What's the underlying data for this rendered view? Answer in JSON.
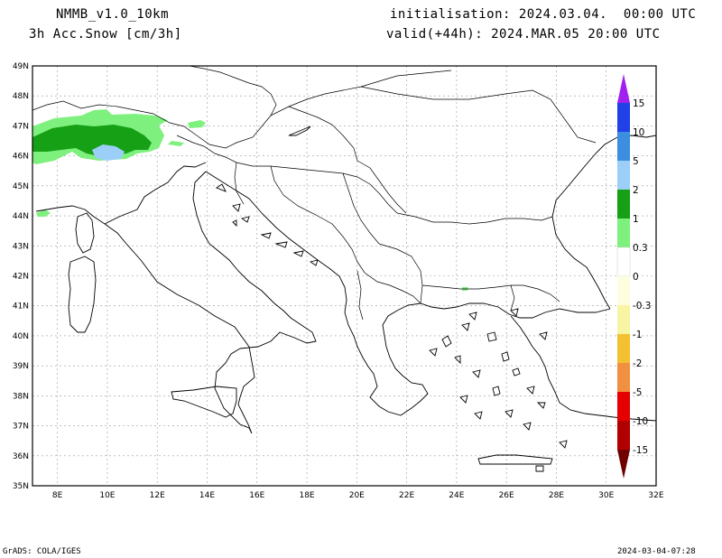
{
  "header": {
    "model": "NMMB_v1.0_10km",
    "variable": "3h Acc.Snow [cm/3h]",
    "init": "initialisation: 2024.03.04.  00:00 UTC",
    "valid": "valid(+44h): 2024.MAR.05 20:00 UTC"
  },
  "footer": {
    "credit": "GrADS: COLA/IGES",
    "stamp": "2024-03-04-07:28"
  },
  "map": {
    "lon_range": [
      7,
      32
    ],
    "lat_range": [
      35,
      49
    ],
    "lon_ticks": [
      "8E",
      "10E",
      "12E",
      "14E",
      "16E",
      "18E",
      "20E",
      "22E",
      "24E",
      "26E",
      "28E",
      "30E",
      "32E"
    ],
    "lat_ticks": [
      "49N",
      "48N",
      "47N",
      "46N",
      "45N",
      "44N",
      "43N",
      "42N",
      "41N",
      "40N",
      "39N",
      "38N",
      "37N",
      "36N",
      "35N"
    ]
  },
  "legend": {
    "labels": [
      "15",
      "10",
      "5",
      "2",
      "1",
      "0.3",
      "0",
      "-0.3",
      "-1",
      "-2",
      "-5",
      "-10",
      "-15"
    ],
    "colors": [
      "#a020f0",
      "#2040e8",
      "#3c8ee0",
      "#9ccff8",
      "#16a016",
      "#7ef07e",
      "#ffffff",
      "#fdfde0",
      "#f7f5a3",
      "#f2c030",
      "#f09040",
      "#e40000",
      "#b00000",
      "#700000"
    ]
  }
}
